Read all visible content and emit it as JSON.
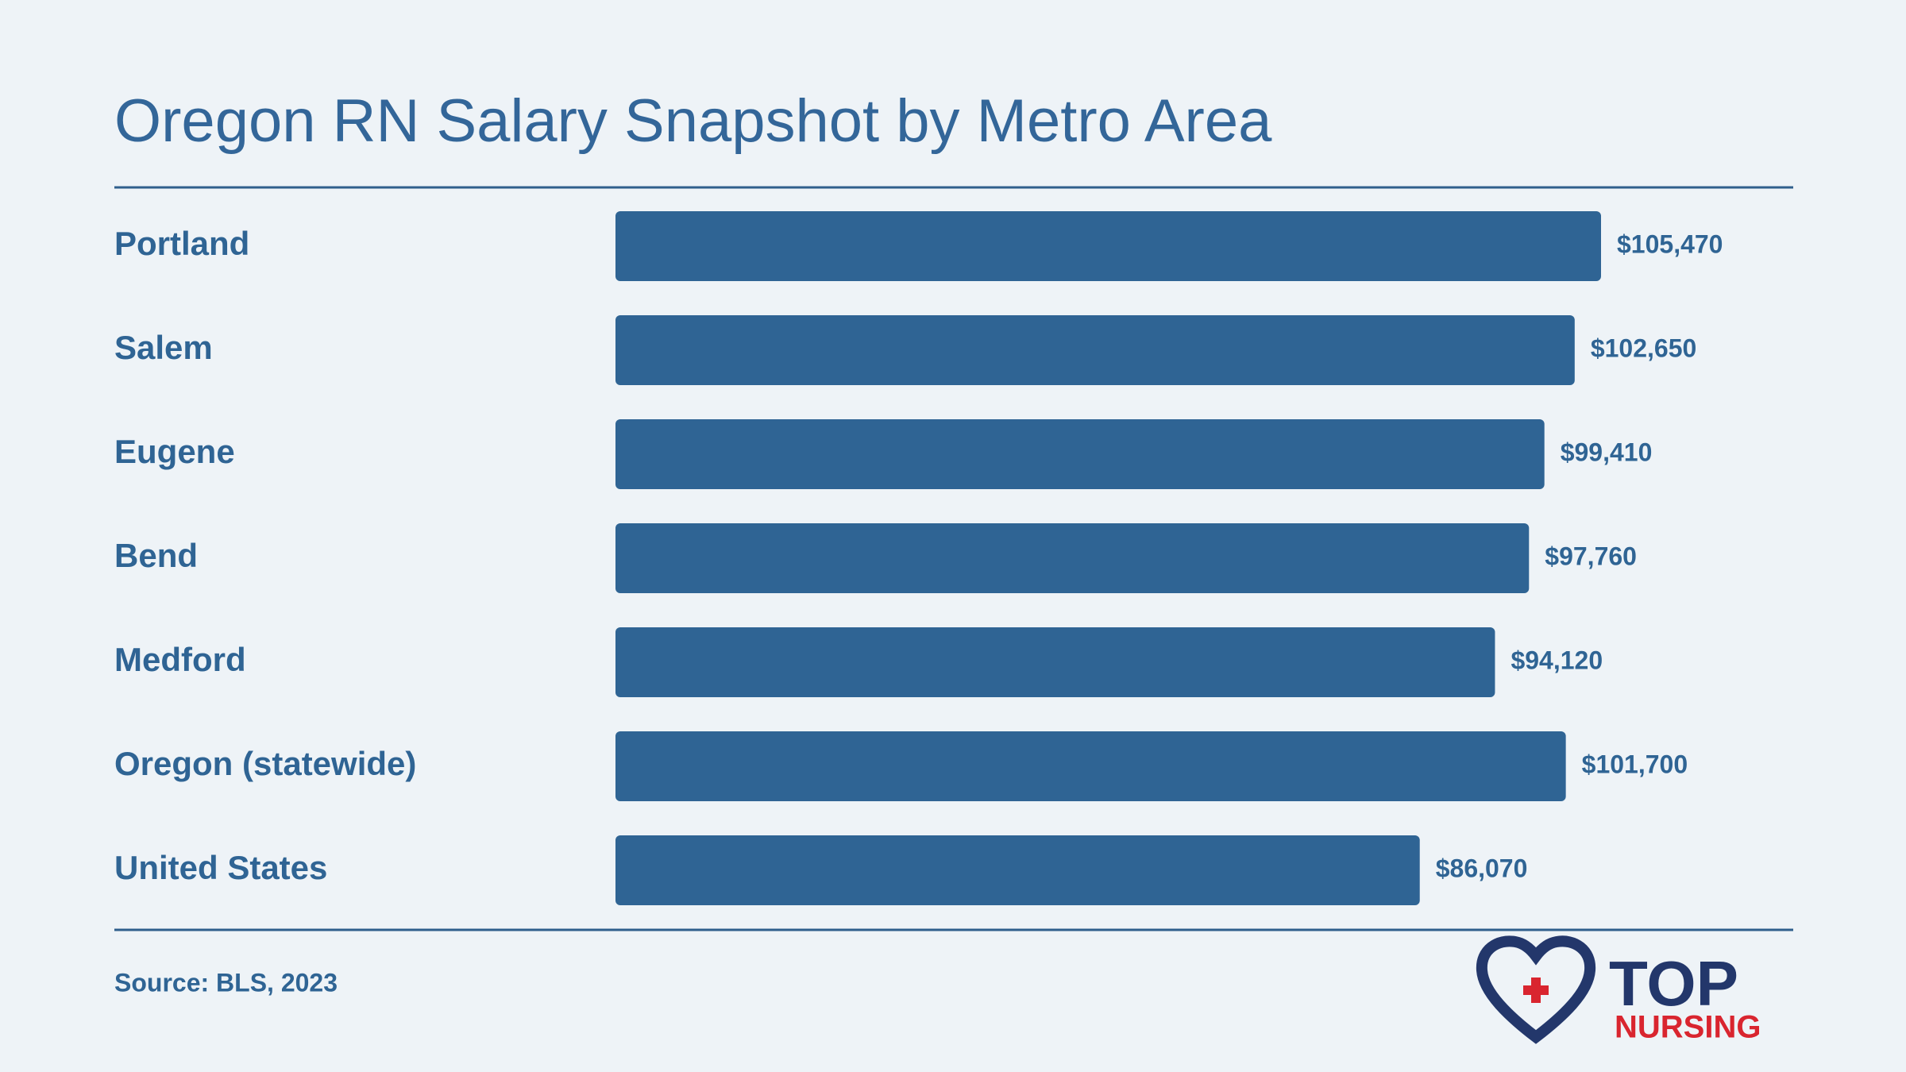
{
  "chart_data": {
    "type": "bar",
    "orientation": "horizontal",
    "title": "Oregon RN Salary Snapshot by Metro Area",
    "categories": [
      "Portland",
      "Salem",
      "Eugene",
      "Bend",
      "Medford",
      "Oregon (statewide)",
      "United States"
    ],
    "values": [
      105470,
      102650,
      99410,
      97760,
      94120,
      101700,
      86070
    ],
    "value_labels": [
      "$105,470",
      "$102,650",
      "$99,410",
      "$97,760",
      "$94,120",
      "$101,700",
      "$86,070"
    ],
    "color": "#2f6494",
    "source": "Source: BLS, 2023"
  },
  "logo": {
    "top": "TOP",
    "bottom": "NURSING"
  }
}
